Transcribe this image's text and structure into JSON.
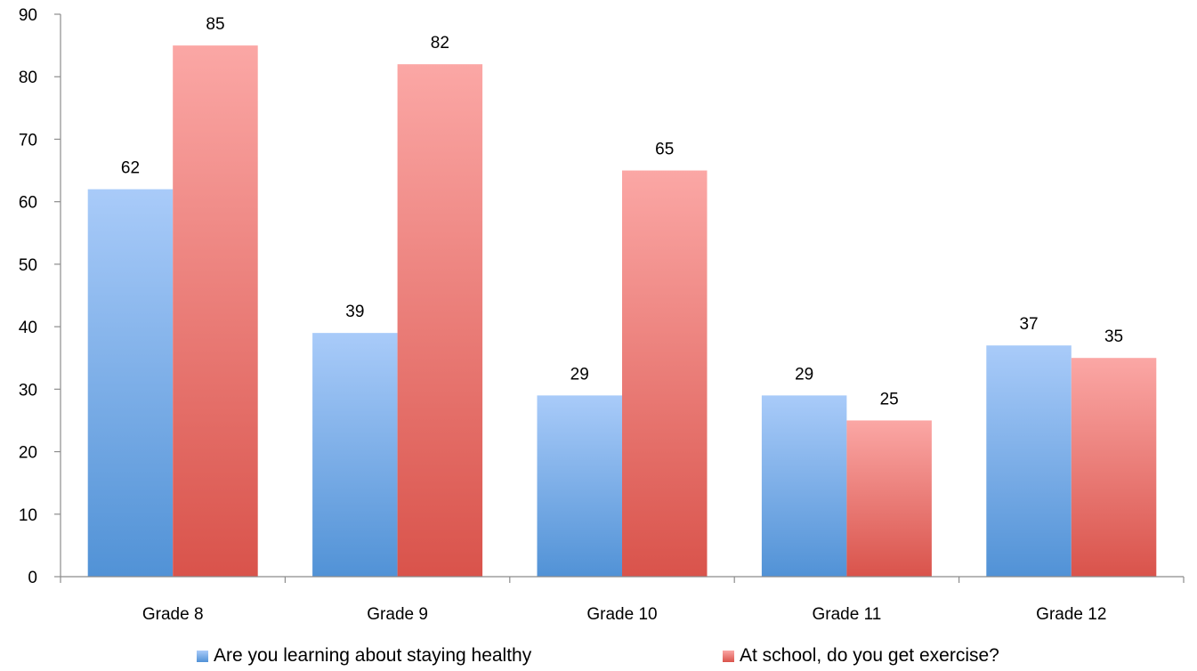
{
  "chart_data": {
    "type": "bar",
    "title": "",
    "xlabel": "",
    "ylabel": "",
    "ylim": [
      0,
      90
    ],
    "yticks": [
      "0",
      "10",
      "20",
      "30",
      "40",
      "50",
      "60",
      "70",
      "80",
      "90"
    ],
    "categories": [
      "Grade 8",
      "Grade 9",
      "Grade 10",
      "Grade 11",
      "Grade 12"
    ],
    "series": [
      {
        "name": "Are you learning about staying healthy",
        "values": [
          62,
          39,
          29,
          29,
          37
        ],
        "color_top": "#a9cbf9",
        "color_bottom": "#5192d6"
      },
      {
        "name": "At school, do you get exercise?",
        "values": [
          85,
          82,
          65,
          25,
          35
        ],
        "color_top": "#fba7a5",
        "color_bottom": "#d9534b"
      }
    ],
    "data_labels": true,
    "grid": false,
    "legend_position": "bottom"
  }
}
